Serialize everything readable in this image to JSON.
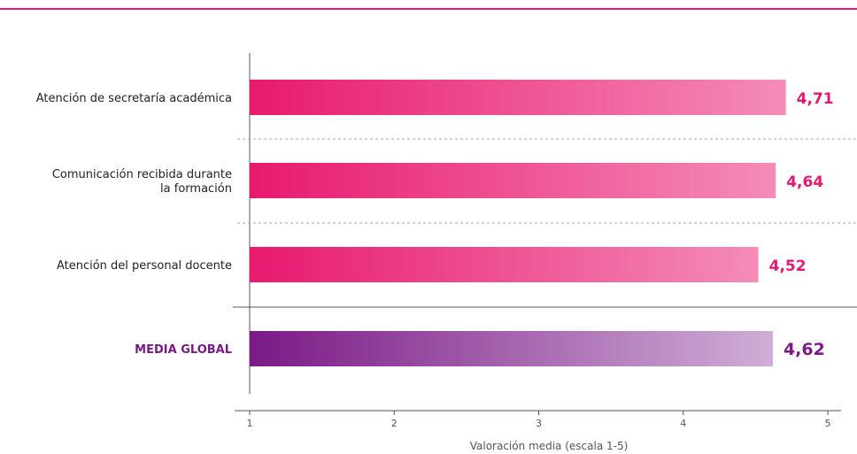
{
  "chart_data": {
    "type": "bar",
    "orientation": "horizontal",
    "categories": [
      [
        "Atención de secretaría académica"
      ],
      [
        "Comunicación recibida durante",
        "la formación"
      ],
      [
        "Atención del personal docente"
      ]
    ],
    "values": [
      4.71,
      4.64,
      4.52
    ],
    "value_labels": [
      "4,71",
      "4,64",
      "4,52"
    ],
    "summary": {
      "label": "MEDIA GLOBAL",
      "value": 4.62,
      "value_label": "4,62"
    },
    "xlabel": "Valoración media (escala 1-5)",
    "xlim": [
      1,
      5
    ],
    "xticks": [
      "1",
      "2",
      "3",
      "4",
      "5"
    ],
    "grid": false,
    "colors": {
      "bar_start": "#e8196f",
      "bar_end": "#f48cb8",
      "value_text": "#e01a72",
      "summary_start": "#7b1a86",
      "summary_end": "#cfaed6",
      "summary_text": "#7b1a86",
      "top_rule": "#e0197a",
      "axis": "#555555",
      "divider": "#aaaaaa"
    }
  }
}
